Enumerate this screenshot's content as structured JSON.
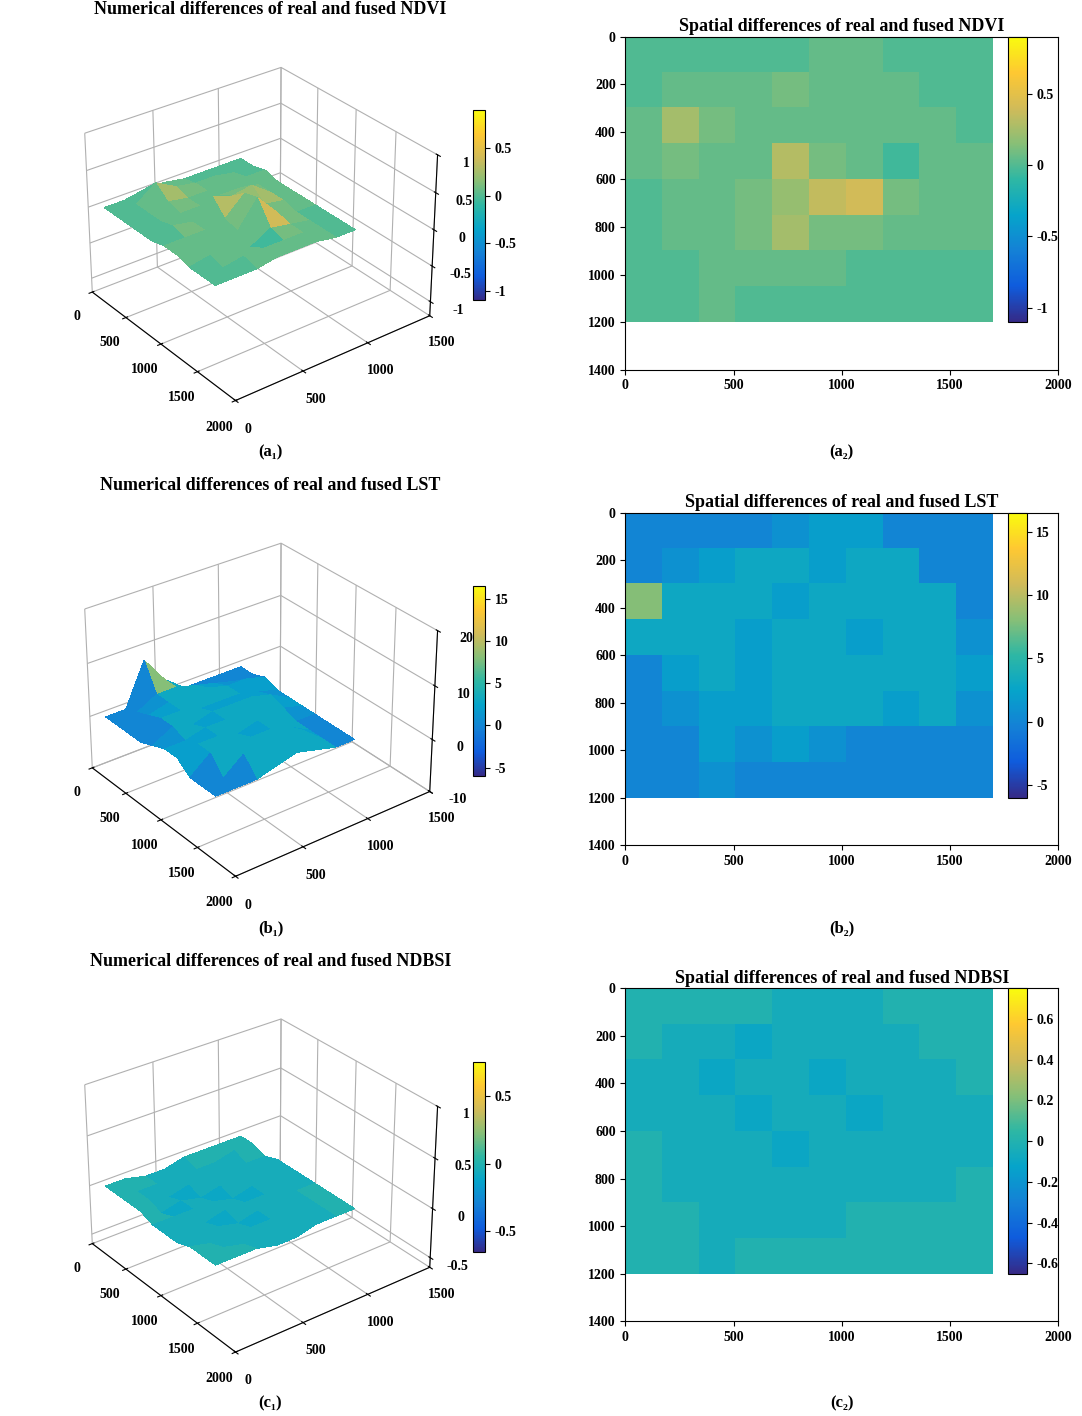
{
  "chart_data": [
    {
      "type": "surface3d",
      "title": "Numerical differences of real and fused NDVI",
      "panel_label": "(a₁)",
      "x_edges": [
        0,
        170,
        340,
        510,
        680,
        850,
        1020,
        1190,
        1360,
        1530,
        1700
      ],
      "y_edges": [
        0,
        150,
        300,
        450,
        600,
        750,
        900,
        1050,
        1200
      ],
      "cells": [
        [
          0,
          0,
          0,
          0,
          0,
          0.05,
          0.05,
          0,
          0,
          0
        ],
        [
          0,
          0.05,
          0.05,
          0.05,
          0.1,
          0.05,
          0.05,
          0.05,
          0,
          0
        ],
        [
          0.05,
          0.25,
          0.1,
          0.05,
          0.05,
          0.05,
          0.05,
          0.05,
          0.05,
          0
        ],
        [
          0.05,
          0.1,
          0.05,
          0.05,
          0.3,
          0.1,
          0.05,
          -0.05,
          0.05,
          0.05
        ],
        [
          0,
          0.05,
          0.05,
          0.1,
          0.2,
          0.35,
          0.4,
          0.1,
          0.05,
          0.05
        ],
        [
          0,
          0.05,
          0.05,
          0.1,
          0.25,
          0.1,
          0.1,
          0.05,
          0.05,
          0.05
        ],
        [
          0,
          0,
          0.05,
          0.05,
          0.05,
          0.05,
          0,
          0,
          0,
          0
        ],
        [
          0,
          0,
          0.05,
          0,
          0,
          0,
          0,
          0,
          0,
          0
        ]
      ],
      "xlim": [
        0,
        2000
      ],
      "xticks": [
        0,
        500,
        1000,
        1500,
        2000
      ],
      "ylim": [
        0,
        1500
      ],
      "yticks": [
        0,
        500,
        1000,
        1500
      ],
      "zlim": [
        -1.2,
        1
      ],
      "zticks": [
        -1,
        -0.5,
        0,
        0.5,
        1
      ],
      "colorbar_range": [
        -1.1,
        0.9
      ],
      "colorbar_ticks": [
        -1,
        -0.5,
        0,
        0.5
      ]
    },
    {
      "type": "heatmap",
      "title": "Spatial differences of real and fused NDVI",
      "panel_label": "(a₂)",
      "x_edges": [
        0,
        170,
        340,
        510,
        680,
        850,
        1020,
        1190,
        1360,
        1530,
        1700
      ],
      "y_edges": [
        0,
        150,
        300,
        450,
        600,
        750,
        900,
        1050,
        1200
      ],
      "cells": [
        [
          0,
          0,
          0,
          0,
          0,
          0.05,
          0.05,
          0,
          0,
          0
        ],
        [
          0,
          0.05,
          0.05,
          0.05,
          0.1,
          0.05,
          0.05,
          0.05,
          0,
          0
        ],
        [
          0.05,
          0.25,
          0.1,
          0.05,
          0.05,
          0.05,
          0.05,
          0.05,
          0.05,
          0
        ],
        [
          0.05,
          0.1,
          0.05,
          0.05,
          0.3,
          0.1,
          0.05,
          -0.05,
          0.05,
          0.05
        ],
        [
          0,
          0.05,
          0.05,
          0.1,
          0.2,
          0.35,
          0.4,
          0.1,
          0.05,
          0.05
        ],
        [
          0,
          0.05,
          0.05,
          0.1,
          0.25,
          0.1,
          0.1,
          0.05,
          0.05,
          0.05
        ],
        [
          0,
          0,
          0.05,
          0.05,
          0.05,
          0.05,
          0,
          0,
          0,
          0
        ],
        [
          0,
          0,
          0.05,
          0,
          0,
          0,
          0,
          0,
          0,
          0
        ]
      ],
      "xlim": [
        0,
        2000
      ],
      "xticks": [
        0,
        500,
        1000,
        1500,
        2000
      ],
      "ylim": [
        1400,
        0
      ],
      "yticks": [
        0,
        200,
        400,
        600,
        800,
        1000,
        1200,
        1400
      ],
      "colorbar_range": [
        -1.1,
        0.9
      ],
      "colorbar_ticks": [
        -1,
        -0.5,
        0,
        0.5
      ]
    },
    {
      "type": "surface3d",
      "title": "Numerical differences of real and fused LST",
      "panel_label": "(b₁)",
      "x_edges": [
        0,
        170,
        340,
        510,
        680,
        850,
        1020,
        1190,
        1360,
        1530,
        1700
      ],
      "y_edges": [
        0,
        150,
        300,
        450,
        600,
        750,
        900,
        1050,
        1200
      ],
      "cells": [
        [
          0,
          0,
          0,
          0,
          1,
          2,
          2,
          0,
          0,
          0
        ],
        [
          0,
          1,
          2,
          3,
          3,
          2,
          3,
          3,
          0,
          0
        ],
        [
          8,
          3,
          3,
          3,
          2,
          3,
          3,
          3,
          3,
          0
        ],
        [
          3,
          3,
          3,
          2,
          3,
          3,
          2,
          3,
          3,
          1
        ],
        [
          0,
          2,
          3,
          2,
          3,
          3,
          3,
          3,
          3,
          2
        ],
        [
          0,
          1,
          2,
          2,
          3,
          3,
          3,
          2,
          3,
          1
        ],
        [
          0,
          0,
          2,
          1,
          2,
          1,
          0,
          0,
          0,
          0
        ],
        [
          0,
          0,
          1,
          0,
          0,
          0,
          0,
          0,
          0,
          0
        ]
      ],
      "xlim": [
        0,
        2000
      ],
      "xticks": [
        0,
        500,
        1000,
        1500,
        2000
      ],
      "ylim": [
        0,
        1500
      ],
      "yticks": [
        0,
        500,
        1000,
        1500
      ],
      "zlim": [
        -10,
        20
      ],
      "zticks": [
        -10,
        0,
        10,
        20
      ],
      "colorbar_range": [
        -6,
        16.5
      ],
      "colorbar_ticks": [
        -5,
        0,
        5,
        10,
        15
      ]
    },
    {
      "type": "heatmap",
      "title": "Spatial differences of real and fused LST",
      "panel_label": "(b₂)",
      "x_edges": [
        0,
        170,
        340,
        510,
        680,
        850,
        1020,
        1190,
        1360,
        1530,
        1700
      ],
      "y_edges": [
        0,
        150,
        300,
        450,
        600,
        750,
        900,
        1050,
        1200
      ],
      "cells": [
        [
          0,
          0,
          0,
          0,
          1,
          2,
          2,
          0,
          0,
          0
        ],
        [
          0,
          1,
          2,
          3,
          3,
          2,
          3,
          3,
          0,
          0
        ],
        [
          8,
          3,
          3,
          3,
          2,
          3,
          3,
          3,
          3,
          0
        ],
        [
          3,
          3,
          3,
          2,
          3,
          3,
          2,
          3,
          3,
          1
        ],
        [
          0,
          2,
          3,
          2,
          3,
          3,
          3,
          3,
          3,
          2
        ],
        [
          0,
          1,
          2,
          2,
          3,
          3,
          3,
          2,
          3,
          1
        ],
        [
          0,
          0,
          2,
          1,
          2,
          1,
          0,
          0,
          0,
          0
        ],
        [
          0,
          0,
          1,
          0,
          0,
          0,
          0,
          0,
          0,
          0
        ]
      ],
      "xlim": [
        0,
        2000
      ],
      "xticks": [
        0,
        500,
        1000,
        1500,
        2000
      ],
      "ylim": [
        1400,
        0
      ],
      "yticks": [
        0,
        200,
        400,
        600,
        800,
        1000,
        1200,
        1400
      ],
      "colorbar_range": [
        -6,
        16.5
      ],
      "colorbar_ticks": [
        -5,
        0,
        5,
        10,
        15
      ]
    },
    {
      "type": "surface3d",
      "title": "Numerical differences of real and fused NDBSI",
      "panel_label": "(c₁)",
      "x_edges": [
        0,
        170,
        340,
        510,
        680,
        850,
        1020,
        1190,
        1360,
        1530,
        1700
      ],
      "y_edges": [
        0,
        150,
        300,
        450,
        600,
        750,
        900,
        1050,
        1200
      ],
      "cells": [
        [
          0,
          0,
          0,
          0,
          -0.05,
          -0.05,
          -0.05,
          0,
          0,
          0
        ],
        [
          0,
          -0.05,
          -0.05,
          -0.1,
          -0.05,
          -0.05,
          -0.05,
          -0.05,
          0,
          0
        ],
        [
          -0.05,
          -0.05,
          -0.1,
          -0.05,
          -0.05,
          -0.1,
          -0.05,
          -0.05,
          -0.05,
          0
        ],
        [
          -0.05,
          -0.05,
          -0.05,
          -0.1,
          -0.05,
          -0.05,
          -0.1,
          -0.05,
          -0.05,
          -0.05
        ],
        [
          0,
          -0.05,
          -0.05,
          -0.05,
          -0.1,
          -0.05,
          -0.05,
          -0.05,
          -0.05,
          -0.05
        ],
        [
          0,
          -0.05,
          -0.05,
          -0.05,
          -0.05,
          -0.05,
          -0.05,
          -0.05,
          -0.05,
          0
        ],
        [
          0,
          0,
          -0.05,
          -0.05,
          -0.05,
          -0.05,
          0,
          0,
          0,
          0
        ],
        [
          0,
          0,
          -0.05,
          0,
          0,
          0,
          0,
          0,
          0,
          0
        ]
      ],
      "xlim": [
        0,
        2000
      ],
      "xticks": [
        0,
        500,
        1000,
        1500,
        2000
      ],
      "ylim": [
        0,
        1500
      ],
      "yticks": [
        0,
        500,
        1000,
        1500
      ],
      "zlim": [
        -0.6,
        1
      ],
      "zticks": [
        -0.5,
        0,
        0.5,
        1
      ],
      "colorbar_range": [
        -0.65,
        0.75
      ],
      "colorbar_ticks": [
        -0.5,
        0,
        0.5
      ]
    },
    {
      "type": "heatmap",
      "title": "Spatial differences of real and fused NDBSI",
      "panel_label": "(c₂)",
      "x_edges": [
        0,
        170,
        340,
        510,
        680,
        850,
        1020,
        1190,
        1360,
        1530,
        1700
      ],
      "y_edges": [
        0,
        150,
        300,
        450,
        600,
        750,
        900,
        1050,
        1200
      ],
      "cells": [
        [
          0,
          0,
          0,
          0,
          -0.05,
          -0.05,
          -0.05,
          0,
          0,
          0
        ],
        [
          0,
          -0.05,
          -0.05,
          -0.1,
          -0.05,
          -0.05,
          -0.05,
          -0.05,
          0,
          0
        ],
        [
          -0.05,
          -0.05,
          -0.1,
          -0.05,
          -0.05,
          -0.1,
          -0.05,
          -0.05,
          -0.05,
          0
        ],
        [
          -0.05,
          -0.05,
          -0.05,
          -0.1,
          -0.05,
          -0.05,
          -0.1,
          -0.05,
          -0.05,
          -0.05
        ],
        [
          0,
          -0.05,
          -0.05,
          -0.05,
          -0.1,
          -0.05,
          -0.05,
          -0.05,
          -0.05,
          -0.05
        ],
        [
          0,
          -0.05,
          -0.05,
          -0.05,
          -0.05,
          -0.05,
          -0.05,
          -0.05,
          -0.05,
          0
        ],
        [
          0,
          0,
          -0.05,
          -0.05,
          -0.05,
          -0.05,
          0,
          0,
          0,
          0
        ],
        [
          0,
          0,
          -0.05,
          0,
          0,
          0,
          0,
          0,
          0,
          0
        ]
      ],
      "xlim": [
        0,
        2000
      ],
      "xticks": [
        0,
        500,
        1000,
        1500,
        2000
      ],
      "ylim": [
        1400,
        0
      ],
      "yticks": [
        0,
        200,
        400,
        600,
        800,
        1000,
        1200,
        1400
      ],
      "colorbar_range": [
        -0.65,
        0.75
      ],
      "colorbar_ticks": [
        -0.6,
        -0.4,
        -0.2,
        0,
        0.2,
        0.4,
        0.6
      ]
    }
  ]
}
